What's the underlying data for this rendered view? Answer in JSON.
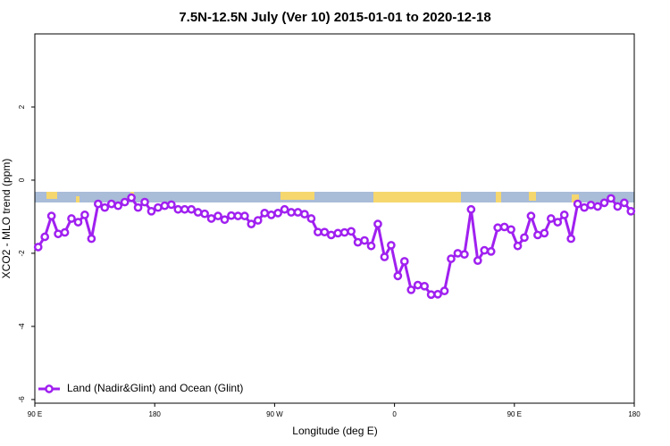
{
  "chart_data": {
    "type": "line",
    "title": "7.5N-12.5N July (Ver 10)   2015-01-01 to 2020-12-18",
    "xlabel": "Longitude (deg E)",
    "ylabel": "XCO2 - MLO trend (ppm)",
    "xlim": [
      90,
      540
    ],
    "ylim": [
      -6.1,
      4
    ],
    "xticks": [
      {
        "value": 90,
        "label": "90 E"
      },
      180,
      {
        "value": 270,
        "label": "90 W"
      },
      {
        "value": 360,
        "label": "0"
      },
      {
        "value": 450,
        "label": "90 E"
      },
      {
        "value": 540,
        "label": "180"
      }
    ],
    "yticks": [
      -6,
      -4,
      -2,
      0,
      2
    ],
    "legend": "lower left",
    "series": [
      {
        "name": "Land (Nadir&Glint) and Ocean (Glint)",
        "color": "#a020f0",
        "x": [
          92.5,
          97.5,
          102.5,
          107.5,
          112.5,
          117.5,
          122.5,
          127.5,
          132.5,
          137.5,
          142.5,
          147.5,
          152.5,
          157.5,
          162.5,
          167.5,
          172.5,
          177.5,
          182.5,
          187.5,
          192.5,
          197.5,
          202.5,
          207.5,
          212.5,
          217.5,
          222.5,
          227.5,
          232.5,
          237.5,
          242.5,
          247.5,
          252.5,
          257.5,
          262.5,
          267.5,
          272.5,
          277.5,
          282.5,
          287.5,
          292.5,
          297.5,
          302.5,
          307.5,
          312.5,
          317.5,
          322.5,
          327.5,
          332.5,
          337.5,
          342.5,
          347.5,
          352.5,
          357.5,
          362.5,
          367.5,
          372.5,
          377.5,
          382.5,
          387.5,
          392.5,
          397.5,
          402.5,
          407.5,
          412.5,
          417.5,
          422.5,
          427.5,
          432.5,
          437.5,
          442.5,
          447.5,
          452.5,
          457.5,
          462.5,
          467.5,
          472.5,
          477.5,
          482.5,
          487.5,
          492.5,
          497.5,
          502.5,
          507.5,
          512.5,
          517.5,
          522.5,
          527.5,
          532.5,
          537.5
        ],
        "values": [
          -1.83,
          -1.55,
          -0.98,
          -1.47,
          -1.43,
          -1.05,
          -1.15,
          -0.95,
          -1.6,
          -0.65,
          -0.75,
          -0.65,
          -0.7,
          -0.6,
          -0.48,
          -0.75,
          -0.6,
          -0.85,
          -0.75,
          -0.7,
          -0.67,
          -0.8,
          -0.8,
          -0.8,
          -0.88,
          -0.92,
          -1.05,
          -0.98,
          -1.08,
          -0.97,
          -0.98,
          -0.98,
          -1.2,
          -1.1,
          -0.9,
          -0.95,
          -0.9,
          -0.8,
          -0.88,
          -0.88,
          -0.93,
          -1.05,
          -1.42,
          -1.42,
          -1.5,
          -1.45,
          -1.43,
          -1.4,
          -1.7,
          -1.65,
          -1.8,
          -1.2,
          -2.1,
          -1.78,
          -2.62,
          -2.22,
          -3.0,
          -2.87,
          -2.9,
          -3.13,
          -3.12,
          -3.03,
          -2.15,
          -2.0,
          -2.03,
          -0.8,
          -2.2,
          -1.92,
          -1.95,
          -1.3,
          -1.28,
          -1.35,
          -1.8,
          -1.57,
          -0.98,
          -1.5,
          -1.45,
          -1.05,
          -1.15,
          -0.95,
          -1.6,
          -0.65,
          -0.75,
          -0.68,
          -0.72,
          -0.62,
          -0.5,
          -0.72,
          -0.62,
          -0.85
        ]
      }
    ]
  }
}
